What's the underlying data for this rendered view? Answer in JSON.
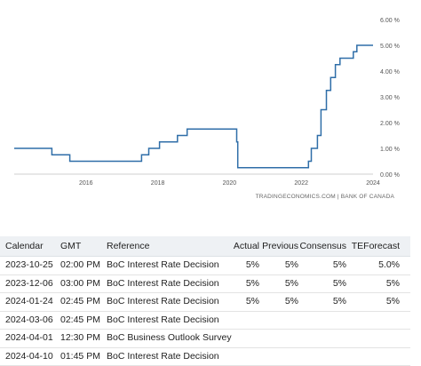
{
  "chart_data": {
    "type": "line",
    "title": "",
    "xlabel": "",
    "ylabel": "",
    "x_tick_labels": [
      "2016",
      "2018",
      "2020",
      "2022",
      "2024"
    ],
    "y_tick_labels": [
      "0.00 %",
      "1.00 %",
      "2.00 %",
      "3.00 %",
      "4.00 %",
      "5.00 %",
      "6.00 %"
    ],
    "ylim": [
      0,
      6
    ],
    "xlim": [
      2014.0,
      2024.0
    ],
    "line_color": "#2f6ea8",
    "grid": "none",
    "series": [
      {
        "values": [
          [
            2014.0,
            1.0
          ],
          [
            2015.05,
            1.0
          ],
          [
            2015.05,
            0.75
          ],
          [
            2015.55,
            0.75
          ],
          [
            2015.55,
            0.5
          ],
          [
            2017.55,
            0.5
          ],
          [
            2017.55,
            0.75
          ],
          [
            2017.75,
            0.75
          ],
          [
            2017.75,
            1.0
          ],
          [
            2018.05,
            1.0
          ],
          [
            2018.05,
            1.25
          ],
          [
            2018.55,
            1.25
          ],
          [
            2018.55,
            1.5
          ],
          [
            2018.82,
            1.5
          ],
          [
            2018.82,
            1.75
          ],
          [
            2020.2,
            1.75
          ],
          [
            2020.2,
            1.25
          ],
          [
            2020.23,
            1.25
          ],
          [
            2020.23,
            0.25
          ],
          [
            2022.2,
            0.25
          ],
          [
            2022.2,
            0.5
          ],
          [
            2022.28,
            0.5
          ],
          [
            2022.28,
            1.0
          ],
          [
            2022.45,
            1.0
          ],
          [
            2022.45,
            1.5
          ],
          [
            2022.55,
            1.5
          ],
          [
            2022.55,
            2.5
          ],
          [
            2022.7,
            2.5
          ],
          [
            2022.7,
            3.25
          ],
          [
            2022.82,
            3.25
          ],
          [
            2022.82,
            3.75
          ],
          [
            2022.95,
            3.75
          ],
          [
            2022.95,
            4.25
          ],
          [
            2023.08,
            4.25
          ],
          [
            2023.08,
            4.5
          ],
          [
            2023.45,
            4.5
          ],
          [
            2023.45,
            4.75
          ],
          [
            2023.55,
            4.75
          ],
          [
            2023.55,
            5.0
          ],
          [
            2024.0,
            5.0
          ]
        ]
      }
    ]
  },
  "attribution": "TRADINGECONOMICS.COM  |  BANK OF CANADA",
  "table": {
    "headers": {
      "calendar": "Calendar",
      "gmt": "GMT",
      "reference": "Reference",
      "actual": "Actual",
      "previous": "Previous",
      "consensus": "Consensus",
      "teforecast": "TEForecast"
    },
    "rows": [
      {
        "calendar": "2023-10-25",
        "gmt": "02:00 PM",
        "reference": "BoC Interest Rate Decision",
        "actual": "5%",
        "previous": "5%",
        "consensus": "5%",
        "teforecast": "5.0%"
      },
      {
        "calendar": "2023-12-06",
        "gmt": "03:00 PM",
        "reference": "BoC Interest Rate Decision",
        "actual": "5%",
        "previous": "5%",
        "consensus": "5%",
        "teforecast": "5%"
      },
      {
        "calendar": "2024-01-24",
        "gmt": "02:45 PM",
        "reference": "BoC Interest Rate Decision",
        "actual": "5%",
        "previous": "5%",
        "consensus": "5%",
        "teforecast": "5%"
      },
      {
        "calendar": "2024-03-06",
        "gmt": "02:45 PM",
        "reference": "BoC Interest Rate Decision",
        "actual": "",
        "previous": "",
        "consensus": "",
        "teforecast": ""
      },
      {
        "calendar": "2024-04-01",
        "gmt": "12:30 PM",
        "reference": "BoC Business Outlook Survey",
        "actual": "",
        "previous": "",
        "consensus": "",
        "teforecast": ""
      },
      {
        "calendar": "2024-04-10",
        "gmt": "01:45 PM",
        "reference": "BoC Interest Rate Decision",
        "actual": "",
        "previous": "",
        "consensus": "",
        "teforecast": ""
      }
    ]
  }
}
